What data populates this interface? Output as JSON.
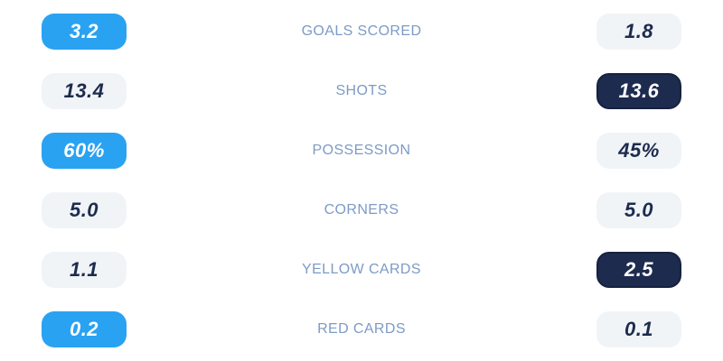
{
  "panel": {
    "title": "match-average-stats-comparison"
  },
  "colors": {
    "background": "#ffffff",
    "home_highlight_blue": "#2aa2f2",
    "away_highlight_navy": "#1d2b4e",
    "neutral_pill": "#f1f4f7",
    "label_text": "#7d9bc5",
    "value_text_dark": "#1d2b4e",
    "value_text_light": "#ffffff"
  },
  "stats": {
    "rows": [
      {
        "label": "GOALS SCORED",
        "home": {
          "value": "3.2",
          "highlighted": true
        },
        "away": {
          "value": "1.8",
          "highlighted": false
        }
      },
      {
        "label": "SHOTS",
        "home": {
          "value": "13.4",
          "highlighted": false
        },
        "away": {
          "value": "13.6",
          "highlighted": true
        }
      },
      {
        "label": "POSSESSION",
        "home": {
          "value": "60%",
          "highlighted": true
        },
        "away": {
          "value": "45%",
          "highlighted": false
        }
      },
      {
        "label": "CORNERS",
        "home": {
          "value": "5.0",
          "highlighted": false
        },
        "away": {
          "value": "5.0",
          "highlighted": false
        }
      },
      {
        "label": "YELLOW CARDS",
        "home": {
          "value": "1.1",
          "highlighted": false
        },
        "away": {
          "value": "2.5",
          "highlighted": true
        }
      },
      {
        "label": "RED CARDS",
        "home": {
          "value": "0.2",
          "highlighted": true
        },
        "away": {
          "value": "0.1",
          "highlighted": false
        }
      }
    ]
  }
}
